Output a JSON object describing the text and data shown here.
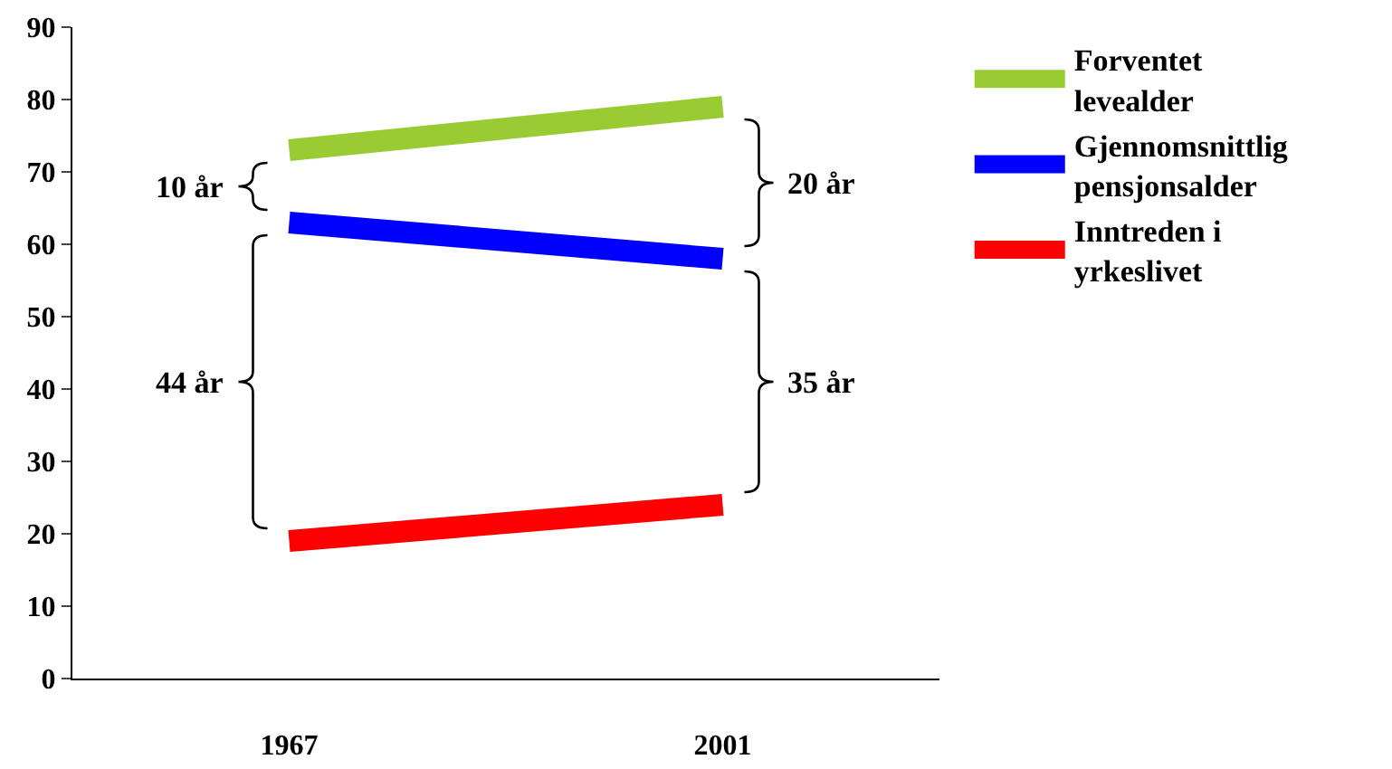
{
  "chart_data": {
    "type": "line",
    "categories": [
      "1967",
      "2001"
    ],
    "series": [
      {
        "name": "Forventet levealder",
        "color": "#99cc33",
        "values": [
          73,
          79
        ]
      },
      {
        "name": "Gjennomsnittlig pensjonsalder",
        "color": "#0000ff",
        "values": [
          63,
          58
        ]
      },
      {
        "name": "Inntreden i yrkeslivet",
        "color": "#ff0000",
        "values": [
          19,
          24
        ]
      }
    ],
    "ylim": [
      0,
      90
    ],
    "yticks": [
      0,
      10,
      20,
      30,
      40,
      50,
      60,
      70,
      80,
      90
    ],
    "legend": "right",
    "annotations": [
      "10 år",
      "44 år",
      "20 år",
      "35 år"
    ]
  }
}
